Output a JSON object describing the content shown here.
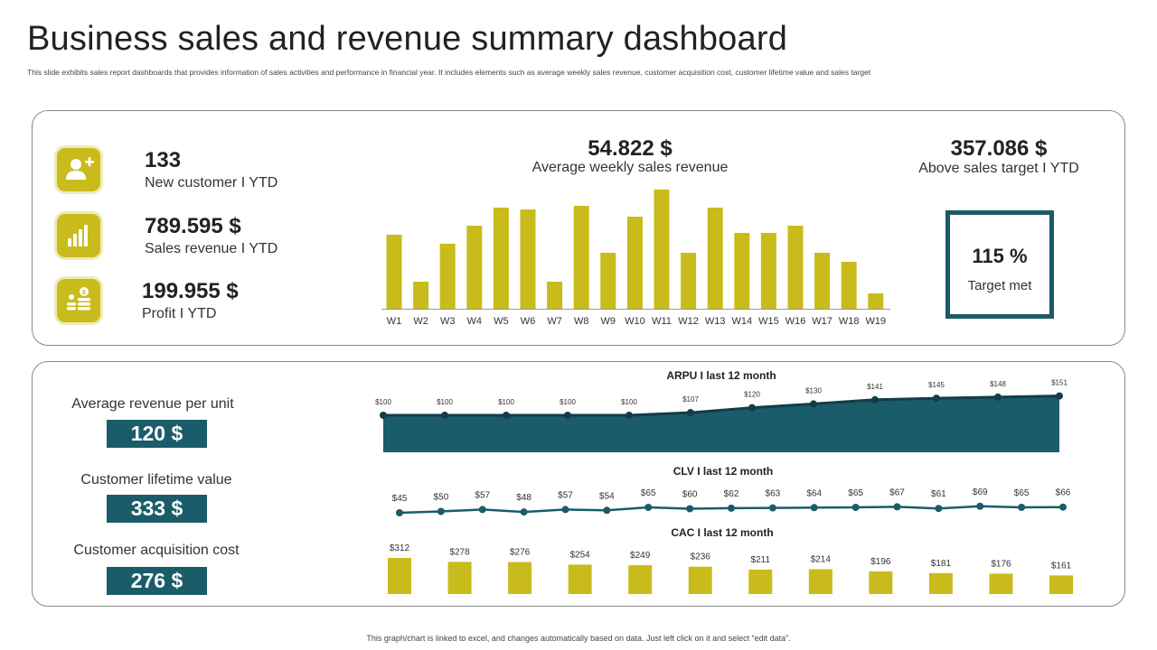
{
  "header": {
    "title": "Business sales and revenue summary dashboard",
    "subtitle": "This slide exhibits sales report dashboards that provides information of sales activities and performance in financial year. It includes elements such as average weekly sales revenue, customer acquisition cost, customer lifetime value and sales target"
  },
  "kpis": [
    {
      "value": "133",
      "label": "New customer I YTD",
      "icon": "add-user-icon"
    },
    {
      "value": "789.595 $",
      "label": "Sales revenue I YTD",
      "icon": "bar-chart-icon"
    },
    {
      "value": "199.955 $",
      "label": "Profit I YTD",
      "icon": "coins-icon"
    }
  ],
  "weekly": {
    "value": "54.822 $",
    "label": "Average weekly sales revenue"
  },
  "target": {
    "value": "357.086 $",
    "label": "Above sales target I YTD",
    "percent": "115 %",
    "percent_label": "Target met"
  },
  "metrics": [
    {
      "label": "Average revenue per unit",
      "value": "120 $"
    },
    {
      "label": "Customer lifetime value",
      "value": "333 $"
    },
    {
      "label": "Customer acquisition cost",
      "value": "276 $"
    }
  ],
  "colors": {
    "accent": "#c9bb1b",
    "teal": "#1a5c69",
    "dark": "#222222"
  },
  "footer": "This graph/chart is linked to excel, and changes automatically based on data. Just left click on it and select “edit data”.",
  "chart_data": [
    {
      "type": "bar",
      "title": "Average weekly sales revenue",
      "categories": [
        "W1",
        "W2",
        "W3",
        "W4",
        "W5",
        "W6",
        "W7",
        "W8",
        "W9",
        "W10",
        "W11",
        "W12",
        "W13",
        "W14",
        "W15",
        "W16",
        "W17",
        "W18",
        "W19"
      ],
      "values": [
        82,
        30,
        72,
        92,
        112,
        110,
        30,
        114,
        62,
        102,
        132,
        62,
        112,
        84,
        84,
        92,
        62,
        52,
        17
      ],
      "ylim": [
        0,
        140
      ],
      "xlabel": "",
      "ylabel": ""
    },
    {
      "type": "area",
      "title": "ARPU I last 12 month",
      "values": [
        100,
        100,
        100,
        100,
        100,
        107,
        120,
        130,
        141,
        145,
        148,
        151
      ],
      "labels": [
        "$100",
        "$100",
        "$100",
        "$100",
        "$100",
        "$107",
        "$120",
        "$130",
        "$141",
        "$145",
        "$148",
        "$151"
      ],
      "ylim": [
        0,
        160
      ]
    },
    {
      "type": "line",
      "title": "CLV I last 12 month",
      "values": [
        45,
        50,
        57,
        48,
        57,
        54,
        65,
        60,
        62,
        63,
        64,
        65,
        67,
        61,
        69,
        65,
        66
      ],
      "labels": [
        "$45",
        "$50",
        "$57",
        "$48",
        "$57",
        "$54",
        "$65",
        "$60",
        "$62",
        "$63",
        "$64",
        "$65",
        "$67",
        "$61",
        "$69",
        "$65",
        "$66"
      ],
      "ylim": [
        0,
        100
      ]
    },
    {
      "type": "bar",
      "title": "CAC I last 12 month",
      "values": [
        312,
        278,
        276,
        254,
        249,
        236,
        211,
        214,
        196,
        181,
        176,
        161
      ],
      "labels": [
        "$312",
        "$278",
        "$276",
        "$254",
        "$249",
        "$236",
        "$211",
        "$214",
        "$196",
        "$181",
        "$176",
        "$161"
      ],
      "ylim": [
        0,
        320
      ]
    }
  ]
}
